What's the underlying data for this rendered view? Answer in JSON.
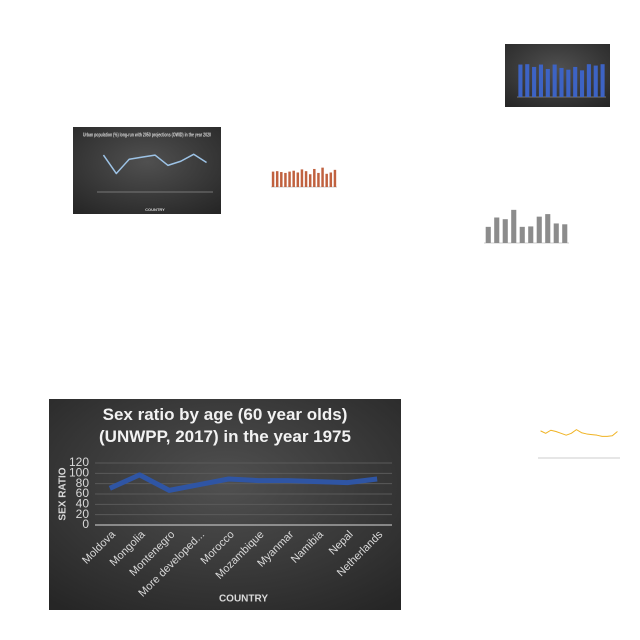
{
  "chart_data": [
    {
      "type": "bar",
      "color": "#3d63c4",
      "ylim": [
        0,
        120
      ],
      "values": [
        95,
        96,
        88,
        95,
        82,
        95,
        85,
        80,
        88,
        78,
        96,
        92,
        96
      ]
    },
    {
      "type": "line",
      "color": "#9dc3e6",
      "title": "Urban population (%) long-run with 2050 projections (OWID) in the year 2020",
      "xlabel": "COUNTRY",
      "ylim": [
        0,
        100
      ],
      "values": [
        90,
        45,
        80,
        85,
        90,
        65,
        75,
        92,
        72
      ]
    },
    {
      "type": "bar",
      "color": "#c0613f",
      "ylim": [
        0,
        100
      ],
      "values": [
        70,
        72,
        68,
        64,
        70,
        74,
        66,
        80,
        72,
        58,
        82,
        64,
        88,
        60,
        66,
        78
      ]
    },
    {
      "type": "bar",
      "color": "#8c8c8c",
      "ylim": [
        0,
        4000
      ],
      "values": [
        1900,
        3000,
        2800,
        3900,
        1900,
        1950,
        3100,
        3400,
        2300,
        2200
      ]
    },
    {
      "type": "line",
      "color": "#f0b323",
      "ylim": [
        0,
        120
      ],
      "values": [
        88,
        80,
        90,
        86,
        80,
        74,
        80,
        92,
        82,
        78,
        76,
        74,
        70,
        70,
        72,
        86
      ]
    },
    {
      "type": "line",
      "color": "#2f55a4",
      "title": "Sex ratio by age (60 year olds) (UNWPP, 2017) in the year 1975",
      "xlabel": "COUNTRY",
      "ylabel": "SEX RATIO",
      "categories": [
        "Moldova",
        "Mongolia",
        "Montenegro",
        "More developed...",
        "Morocco",
        "Mozambique",
        "Myanmar",
        "Namibia",
        "Nepal",
        "Netherlands"
      ],
      "values": [
        71,
        97,
        67,
        78,
        89,
        86,
        86,
        84,
        82,
        89
      ],
      "ylim": [
        0,
        120
      ],
      "yticks": [
        0,
        20,
        40,
        60,
        80,
        100,
        120
      ],
      "grid": true
    }
  ]
}
